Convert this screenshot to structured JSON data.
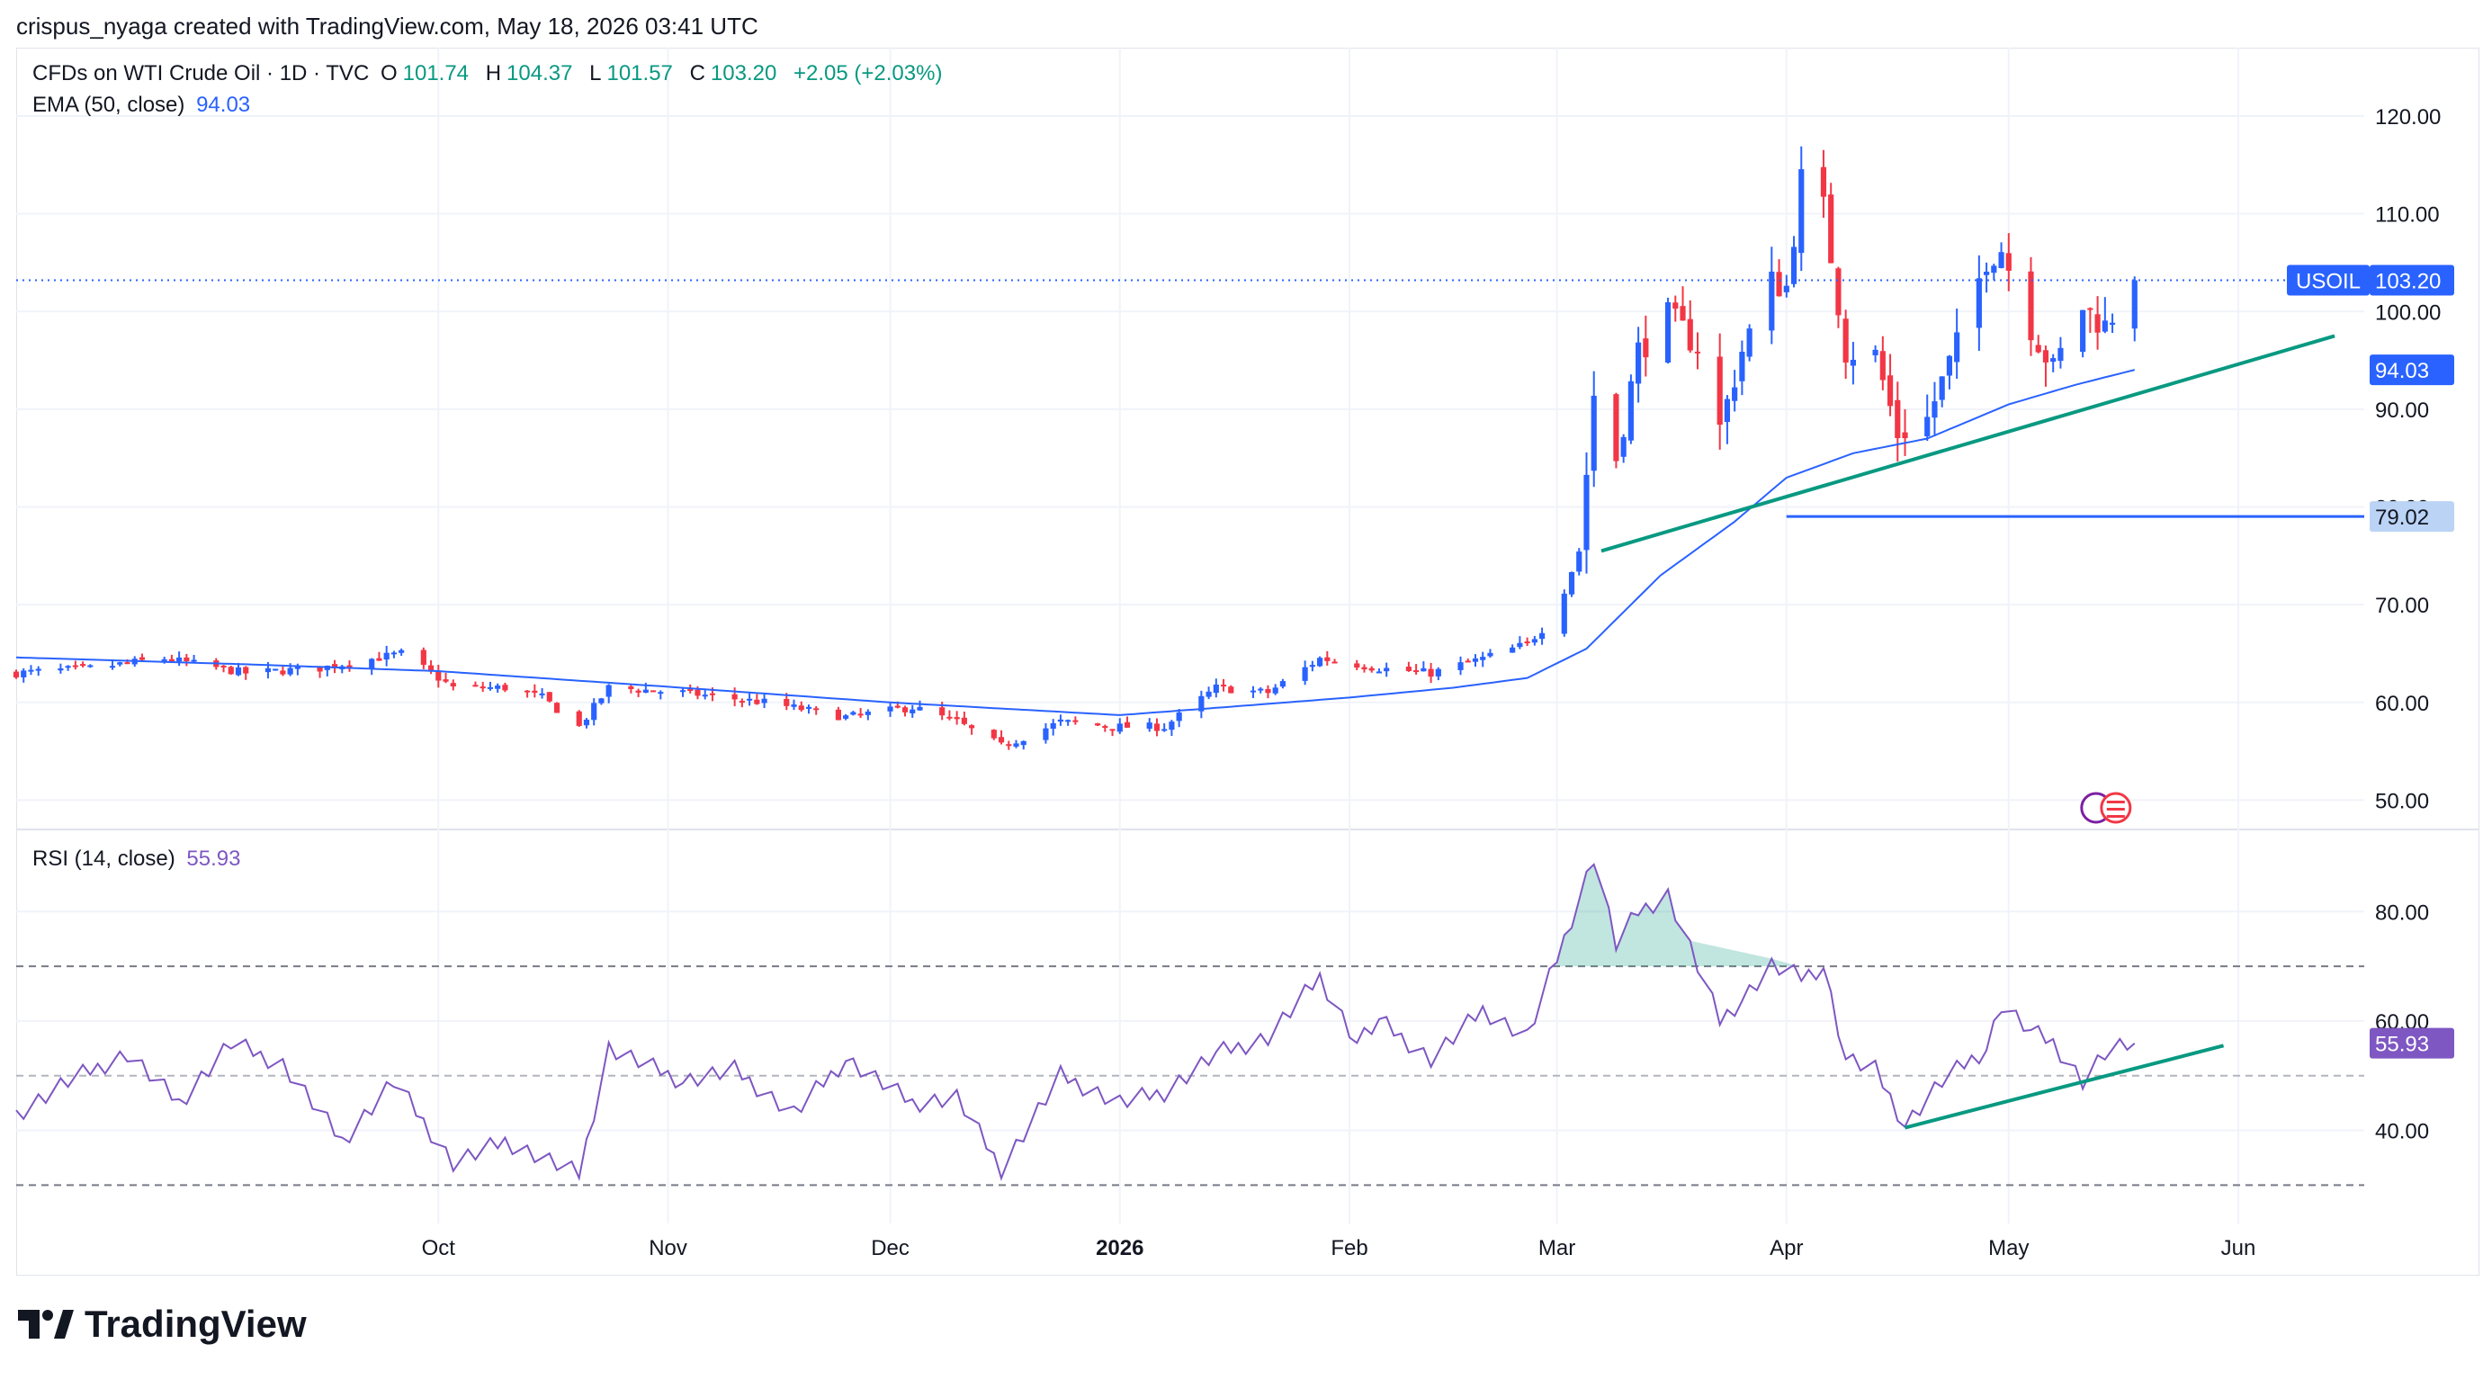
{
  "header": {
    "text": "crispus_nyaga created with TradingView.com, May 18, 2026 03:41 UTC"
  },
  "legend": {
    "symbol": "CFDs on WTI Crude Oil · 1D · TVC",
    "o_label": "O",
    "o": "101.74",
    "h_label": "H",
    "h": "104.37",
    "l_label": "L",
    "l": "101.57",
    "c_label": "C",
    "c": "103.20",
    "change": "+2.05 (+2.03%)",
    "ema_label": "EMA (50, close)",
    "ema_value": "94.03",
    "rsi_label": "RSI (14, close)",
    "rsi_value": "55.93"
  },
  "footer": {
    "brand": "TradingView"
  },
  "colors": {
    "up": "#2962ff",
    "down": "#f23645",
    "ema": "#2962ff",
    "rsi": "#7e57c2",
    "trend": "#089981",
    "grid": "#f0f3fa",
    "support": "#2962ff"
  },
  "chart_data": [
    {
      "type": "candlestick",
      "instrument": "CFDs on WTI Crude Oil",
      "interval": "1D",
      "ylim": [
        47,
        127
      ],
      "y_ticks": [
        "50.00",
        "60.00",
        "70.00",
        "80.00",
        "90.00",
        "100.00",
        "110.00",
        "120.00"
      ],
      "x_ticks": [
        {
          "label": "Oct",
          "date": "2025-10-01"
        },
        {
          "label": "Nov",
          "date": "2025-11-01"
        },
        {
          "label": "Dec",
          "date": "2025-12-01"
        },
        {
          "label": "2026",
          "date": "2026-01-01"
        },
        {
          "label": "Feb",
          "date": "2026-02-01"
        },
        {
          "label": "Mar",
          "date": "2026-03-01"
        },
        {
          "label": "Apr",
          "date": "2026-04-01"
        },
        {
          "label": "May",
          "date": "2026-05-01"
        },
        {
          "label": "Jun",
          "date": "2026-06-01"
        }
      ],
      "x_range": [
        "2025-08-05",
        "2026-06-18"
      ],
      "close_keyframes": [
        [
          "2025-08-05",
          63.0
        ],
        [
          "2025-08-15",
          63.5
        ],
        [
          "2025-08-25",
          64.5
        ],
        [
          "2025-09-05",
          63.0
        ],
        [
          "2025-09-15",
          63.5
        ],
        [
          "2025-09-26",
          65.0
        ],
        [
          "2025-10-03",
          61.5
        ],
        [
          "2025-10-10",
          61.5
        ],
        [
          "2025-10-15",
          60.5
        ],
        [
          "2025-10-20",
          57.5
        ],
        [
          "2025-10-24",
          61.5
        ],
        [
          "2025-11-03",
          61.0
        ],
        [
          "2025-11-14",
          60.0
        ],
        [
          "2025-11-25",
          58.5
        ],
        [
          "2025-12-04",
          59.5
        ],
        [
          "2025-12-10",
          58.0
        ],
        [
          "2025-12-16",
          55.5
        ],
        [
          "2025-12-24",
          58.0
        ],
        [
          "2025-12-31",
          57.5
        ],
        [
          "2026-01-07",
          57.5
        ],
        [
          "2026-01-14",
          61.5
        ],
        [
          "2026-01-21",
          61.0
        ],
        [
          "2026-01-28",
          64.5
        ],
        [
          "2026-02-05",
          63.5
        ],
        [
          "2026-02-12",
          63.0
        ],
        [
          "2026-02-19",
          64.5
        ],
        [
          "2026-02-25",
          66.0
        ],
        [
          "2026-02-27",
          67.5
        ],
        [
          "2026-03-02",
          71.5
        ],
        [
          "2026-03-04",
          75.5
        ],
        [
          "2026-03-06",
          91.5
        ],
        [
          "2026-03-09",
          85.0
        ],
        [
          "2026-03-12",
          96.0
        ],
        [
          "2026-03-16",
          99.5
        ],
        [
          "2026-03-20",
          96.5
        ],
        [
          "2026-03-23",
          88.0
        ],
        [
          "2026-03-26",
          96.0
        ],
        [
          "2026-03-30",
          103.0
        ],
        [
          "2026-04-01",
          102.5
        ],
        [
          "2026-04-03",
          113.5
        ],
        [
          "2026-04-06",
          110.5
        ],
        [
          "2026-04-09",
          96.0
        ],
        [
          "2026-04-13",
          95.5
        ],
        [
          "2026-04-16",
          87.5
        ],
        [
          "2026-04-20",
          89.0
        ],
        [
          "2026-04-24",
          96.5
        ],
        [
          "2026-04-28",
          105.5
        ],
        [
          "2026-04-30",
          106.5
        ],
        [
          "2026-05-04",
          98.5
        ],
        [
          "2026-05-07",
          94.0
        ],
        [
          "2026-05-11",
          100.5
        ],
        [
          "2026-05-14",
          98.5
        ],
        [
          "2026-05-18",
          103.2
        ]
      ],
      "ema_50": {
        "keyframes": [
          [
            "2025-08-05",
            64.6
          ],
          [
            "2025-09-05",
            63.9
          ],
          [
            "2025-10-01",
            63.2
          ],
          [
            "2025-11-01",
            61.6
          ],
          [
            "2025-12-01",
            60.0
          ],
          [
            "2026-01-01",
            58.7
          ],
          [
            "2026-01-15",
            59.5
          ],
          [
            "2026-02-01",
            60.5
          ],
          [
            "2026-02-15",
            61.5
          ],
          [
            "2026-02-25",
            62.5
          ],
          [
            "2026-03-05",
            65.5
          ],
          [
            "2026-03-15",
            73.0
          ],
          [
            "2026-03-25",
            78.5
          ],
          [
            "2026-04-01",
            83.0
          ],
          [
            "2026-04-10",
            85.5
          ],
          [
            "2026-04-20",
            87.0
          ],
          [
            "2026-05-01",
            90.5
          ],
          [
            "2026-05-10",
            92.5
          ],
          [
            "2026-05-18",
            94.03
          ]
        ]
      },
      "trendline": {
        "start": [
          "2026-03-07",
          75.5
        ],
        "end": [
          "2026-06-14",
          97.5
        ]
      },
      "support_line": {
        "start": [
          "2026-04-01",
          79.02
        ],
        "end": [
          "2026-06-18",
          79.02
        ],
        "label": "79.02"
      },
      "price_tags": [
        {
          "label": "USOIL",
          "value": "103.20"
        },
        {
          "value": "94.03"
        }
      ],
      "last_price": 103.2
    },
    {
      "type": "line",
      "name": "RSI (14, close)",
      "ylim": [
        23,
        95
      ],
      "y_ticks": [
        "40.00",
        "60.00",
        "80.00"
      ],
      "levels": [
        30,
        50,
        70
      ],
      "keyframes": [
        [
          "2025-08-05",
          43
        ],
        [
          "2025-08-12",
          49
        ],
        [
          "2025-08-20",
          54
        ],
        [
          "2025-08-27",
          45
        ],
        [
          "2025-09-03",
          56
        ],
        [
          "2025-09-10",
          52
        ],
        [
          "2025-09-18",
          38
        ],
        [
          "2025-09-25",
          49
        ],
        [
          "2025-10-03",
          34
        ],
        [
          "2025-10-10",
          38
        ],
        [
          "2025-10-20",
          32
        ],
        [
          "2025-10-24",
          55
        ],
        [
          "2025-11-03",
          49
        ],
        [
          "2025-11-10",
          51
        ],
        [
          "2025-11-18",
          43
        ],
        [
          "2025-11-25",
          53
        ],
        [
          "2025-12-04",
          45
        ],
        [
          "2025-12-10",
          46
        ],
        [
          "2025-12-16",
          33
        ],
        [
          "2025-12-24",
          50
        ],
        [
          "2026-01-01",
          45
        ],
        [
          "2026-01-07",
          47
        ],
        [
          "2026-01-14",
          54
        ],
        [
          "2026-01-21",
          57
        ],
        [
          "2026-01-28",
          68
        ],
        [
          "2026-02-02",
          56
        ],
        [
          "2026-02-05",
          60
        ],
        [
          "2026-02-12",
          53
        ],
        [
          "2026-02-19",
          62
        ],
        [
          "2026-02-25",
          57
        ],
        [
          "2026-03-02",
          75
        ],
        [
          "2026-03-06",
          90
        ],
        [
          "2026-03-09",
          74
        ],
        [
          "2026-03-12",
          80
        ],
        [
          "2026-03-16",
          83
        ],
        [
          "2026-03-20",
          70
        ],
        [
          "2026-03-23",
          60
        ],
        [
          "2026-03-26",
          64
        ],
        [
          "2026-03-30",
          70
        ],
        [
          "2026-04-03",
          68
        ],
        [
          "2026-04-06",
          70
        ],
        [
          "2026-04-09",
          53
        ],
        [
          "2026-04-13",
          51
        ],
        [
          "2026-04-17",
          41
        ],
        [
          "2026-04-22",
          49
        ],
        [
          "2026-04-28",
          55
        ],
        [
          "2026-04-30",
          63
        ],
        [
          "2026-05-04",
          58
        ],
        [
          "2026-05-07",
          56
        ],
        [
          "2026-05-11",
          49
        ],
        [
          "2026-05-14",
          54
        ],
        [
          "2026-05-18",
          55.93
        ]
      ],
      "trendline": {
        "start": [
          "2026-04-17",
          40.5
        ],
        "end": [
          "2026-05-30",
          55.5
        ]
      },
      "last_value": 55.93
    }
  ]
}
